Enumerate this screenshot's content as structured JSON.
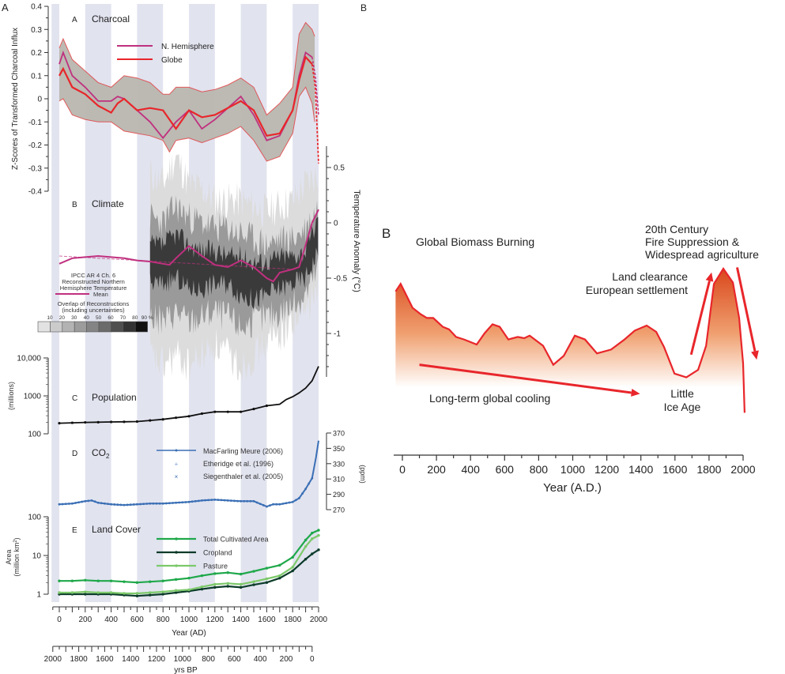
{
  "figure_labels": {
    "left": "A",
    "right_top": "B"
  },
  "colors": {
    "band": "#e1e3ef",
    "magenta": "#c0307f",
    "red": "#e8262b",
    "envelope": "#b8b6ae",
    "blue": "#3a6fb5",
    "total": "#1fa84a",
    "cropland": "#0c3b2a",
    "pasture": "#7cc96a",
    "fire_top": "#d9471c"
  },
  "shared_axes": {
    "year_label": "Year (AD)",
    "year_ticks": [
      0,
      200,
      400,
      600,
      800,
      1000,
      1200,
      1400,
      1600,
      1800,
      2000
    ],
    "bp_label": "yrs BP",
    "bp_ticks": [
      2000,
      1800,
      1600,
      1400,
      1200,
      1000,
      800,
      600,
      400,
      200,
      0
    ],
    "shaded_intervals_ad": [
      [
        -60,
        0
      ],
      [
        200,
        400
      ],
      [
        600,
        800
      ],
      [
        1000,
        1200
      ],
      [
        1400,
        1600
      ],
      [
        1800,
        2000
      ]
    ]
  },
  "chart_data": [
    {
      "type": "line",
      "panel": "A",
      "title": "Charcoal",
      "ylabel": "Z-Scores of Transformed Charcoal Influx",
      "ylim": [
        -0.4,
        0.4
      ],
      "yticks": [
        "0.4",
        "0.3",
        "0.2",
        "0.1",
        "0",
        "-0.1",
        "-0.2",
        "-0.3",
        "-0.4"
      ],
      "x": [
        0,
        30,
        100,
        200,
        300,
        400,
        450,
        500,
        600,
        700,
        800,
        900,
        1000,
        1100,
        1200,
        1300,
        1400,
        1500,
        1600,
        1700,
        1800,
        1850,
        1900,
        1950
      ],
      "series": [
        {
          "name": "N. Hemisphere",
          "values": [
            0.15,
            0.2,
            0.1,
            0.05,
            -0.01,
            -0.01,
            0.01,
            0.0,
            -0.05,
            -0.1,
            -0.17,
            -0.1,
            -0.05,
            -0.13,
            -0.09,
            -0.04,
            0.01,
            -0.07,
            -0.18,
            -0.16,
            -0.05,
            0.1,
            0.2,
            0.18
          ]
        },
        {
          "name": "Globe",
          "values": [
            0.1,
            0.13,
            0.05,
            0.02,
            -0.03,
            -0.06,
            -0.02,
            0.0,
            -0.05,
            -0.04,
            -0.05,
            -0.13,
            -0.05,
            -0.08,
            -0.07,
            -0.04,
            -0.01,
            -0.05,
            -0.16,
            -0.15,
            -0.05,
            0.08,
            0.18,
            0.15
          ]
        }
      ],
      "dashed_extension": {
        "x": [
          1950,
          1975,
          2000
        ],
        "nh": [
          0.18,
          0.1,
          -0.07
        ],
        "globe": [
          0.15,
          0.05,
          -0.28
        ]
      },
      "uncertainty_band": {
        "x": [
          0,
          30,
          100,
          200,
          300,
          400,
          500,
          600,
          700,
          800,
          850,
          900,
          1000,
          1100,
          1200,
          1300,
          1400,
          1500,
          1600,
          1700,
          1800,
          1850,
          1900,
          1950,
          1970
        ],
        "upper": [
          0.22,
          0.26,
          0.17,
          0.12,
          0.07,
          0.05,
          0.1,
          0.09,
          0.07,
          0.02,
          0.02,
          0.05,
          0.05,
          0.03,
          0.04,
          0.06,
          0.09,
          0.05,
          -0.07,
          -0.02,
          0.05,
          0.28,
          0.33,
          0.3,
          0.27
        ],
        "lower": [
          -0.01,
          0.0,
          -0.07,
          -0.09,
          -0.1,
          -0.1,
          -0.14,
          -0.15,
          -0.16,
          -0.18,
          -0.23,
          -0.18,
          -0.17,
          -0.19,
          -0.17,
          -0.15,
          -0.12,
          -0.18,
          -0.27,
          -0.25,
          -0.15,
          0.01,
          0.05,
          -0.02,
          -0.1
        ]
      },
      "legend": [
        "N. Hemisphere",
        "Globe"
      ]
    },
    {
      "type": "line",
      "panel": "B",
      "title": "Climate",
      "ylabel": "Temperature Anomaly (°C)",
      "ylim": [
        -1.4,
        0.7
      ],
      "yticks": [
        "0.5",
        "0",
        "-0.5",
        "-1"
      ],
      "mean": {
        "x": [
          0,
          100,
          200,
          300,
          400,
          500,
          600,
          700,
          800,
          850,
          900,
          1000,
          1100,
          1200,
          1300,
          1400,
          1500,
          1600,
          1650,
          1700,
          1800,
          1850,
          1900,
          1950,
          2000
        ],
        "values": [
          -0.37,
          -0.32,
          -0.31,
          -0.3,
          -0.31,
          -0.32,
          -0.34,
          -0.35,
          -0.37,
          -0.38,
          -0.32,
          -0.21,
          -0.3,
          -0.38,
          -0.4,
          -0.34,
          -0.4,
          -0.5,
          -0.53,
          -0.45,
          -0.42,
          -0.4,
          -0.2,
          0.0,
          0.12
        ]
      },
      "overlap_envelopes": {
        "x": [
          700,
          800,
          900,
          1000,
          1100,
          1200,
          1300,
          1400,
          1500,
          1600,
          1700,
          1800,
          1900,
          2000
        ],
        "outer_upper": [
          0.45,
          0.35,
          0.6,
          0.35,
          0.3,
          0.2,
          0.2,
          0.2,
          0.15,
          0.1,
          0.15,
          0.2,
          0.35,
          0.45
        ],
        "outer_lower": [
          -1.2,
          -1.3,
          -1.2,
          -1.3,
          -1.2,
          -1.1,
          -1.2,
          -1.3,
          -1.2,
          -1.1,
          -1.0,
          -0.9,
          -0.8,
          -0.6
        ],
        "mid_upper": [
          0.05,
          0.0,
          0.15,
          0.05,
          0.0,
          -0.05,
          -0.05,
          -0.1,
          -0.15,
          -0.2,
          -0.15,
          -0.15,
          -0.05,
          0.15
        ],
        "mid_lower": [
          -0.85,
          -0.9,
          -0.8,
          -0.9,
          -0.85,
          -0.8,
          -0.85,
          -0.95,
          -0.9,
          -0.85,
          -0.8,
          -0.75,
          -0.65,
          -0.4
        ],
        "core_upper": [
          -0.2,
          -0.2,
          -0.1,
          -0.2,
          -0.25,
          -0.25,
          -0.3,
          -0.3,
          -0.35,
          -0.35,
          -0.3,
          -0.3,
          -0.25,
          0.05
        ],
        "core_lower": [
          -0.55,
          -0.55,
          -0.5,
          -0.6,
          -0.6,
          -0.55,
          -0.55,
          -0.65,
          -0.7,
          -0.65,
          -0.6,
          -0.55,
          -0.5,
          -0.25
        ]
      },
      "legend": {
        "lines": [
          "IPCC AR 4 Ch. 6",
          "Reconstructed Northern",
          "Hemisphere Temperature"
        ],
        "mean_label": "Mean",
        "overlap_title": "Overlap of Reconstructions",
        "overlap_sub": "(including uncertainties)",
        "percent_labels": [
          "10",
          "20",
          "30",
          "40",
          "50",
          "60",
          "70",
          "80",
          "90 %"
        ],
        "scale_colors": [
          "#e2e2e2",
          "#cbcbcb",
          "#b3b3b3",
          "#9c9c9c",
          "#848484",
          "#6b6b6b",
          "#4f4f4f",
          "#333333",
          "#111111"
        ]
      }
    },
    {
      "type": "line",
      "panel": "C",
      "title": "Population",
      "ylabel": "(millions)",
      "yscale": "log",
      "ylim": [
        100,
        10000
      ],
      "yticks": [
        "10,000",
        "1000",
        "100"
      ],
      "x": [
        0,
        100,
        200,
        300,
        400,
        500,
        600,
        700,
        800,
        900,
        1000,
        1100,
        1200,
        1300,
        1400,
        1500,
        1600,
        1700,
        1750,
        1800,
        1850,
        1900,
        1950,
        2000
      ],
      "values": [
        190,
        195,
        200,
        202,
        205,
        207,
        210,
        225,
        240,
        265,
        290,
        340,
        380,
        380,
        380,
        450,
        550,
        600,
        800,
        950,
        1200,
        1600,
        2500,
        6000
      ]
    },
    {
      "type": "line",
      "panel": "D",
      "title": "CO",
      "title_sub": "2",
      "ylabel": "(ppm)",
      "ylim": [
        270,
        370
      ],
      "yticks": [
        "370",
        "350",
        "330",
        "310",
        "290",
        "270"
      ],
      "x": [
        0,
        100,
        200,
        250,
        300,
        400,
        500,
        600,
        700,
        800,
        900,
        1000,
        1100,
        1200,
        1300,
        1400,
        1500,
        1600,
        1650,
        1700,
        1800,
        1850,
        1900,
        1950,
        1980,
        2000
      ],
      "values": [
        277,
        278,
        281,
        282,
        279,
        277,
        276,
        277,
        278,
        278,
        279,
        280,
        282,
        283,
        282,
        281,
        281,
        274,
        277,
        277,
        280,
        285,
        297,
        311,
        338,
        360
      ],
      "legend": [
        "MacFarling Meure (2006)",
        "Etheridge et al. (1996)",
        "Siegenthaler et al. (2005)"
      ]
    },
    {
      "type": "line",
      "panel": "E",
      "title": "Land Cover",
      "ylabel_1": "Area",
      "ylabel_2": "(million km",
      "ylabel_sup": "2",
      "ylabel_end": ")",
      "yscale": "log",
      "ylim": [
        1,
        100
      ],
      "yticks": [
        "100",
        "10",
        "1"
      ],
      "x": [
        0,
        100,
        200,
        300,
        400,
        500,
        600,
        700,
        800,
        900,
        1000,
        1100,
        1200,
        1300,
        1400,
        1500,
        1600,
        1700,
        1800,
        1900,
        1950,
        2000
      ],
      "series": [
        {
          "name": "Total Cultivated Area",
          "values": [
            2.2,
            2.2,
            2.3,
            2.2,
            2.2,
            2.1,
            2.0,
            2.1,
            2.2,
            2.4,
            2.6,
            3.0,
            3.4,
            3.6,
            3.3,
            3.9,
            4.7,
            5.6,
            9,
            25,
            38,
            45
          ]
        },
        {
          "name": "Cropland",
          "values": [
            1.0,
            1.0,
            1.0,
            1.0,
            1.0,
            0.95,
            0.9,
            0.95,
            1.0,
            1.1,
            1.2,
            1.35,
            1.5,
            1.6,
            1.5,
            1.75,
            2.0,
            2.6,
            4,
            8,
            11,
            14
          ]
        },
        {
          "name": "Pasture",
          "values": [
            1.1,
            1.1,
            1.15,
            1.1,
            1.1,
            1.05,
            1.05,
            1.1,
            1.15,
            1.25,
            1.3,
            1.55,
            1.8,
            1.9,
            1.8,
            2.1,
            2.5,
            3.0,
            5,
            17,
            27,
            33
          ]
        }
      ]
    },
    {
      "type": "area",
      "panel": "B",
      "label": "B",
      "title": "Global Biomass Burning",
      "xlabel": "Year (A.D.)",
      "xticks": [
        0,
        200,
        400,
        600,
        800,
        1000,
        1200,
        1400,
        1600,
        1800,
        2000
      ],
      "y_units": "relative (no axis shown)",
      "x": [
        -40,
        -10,
        60,
        107,
        144,
        181,
        237,
        274,
        315,
        362,
        436,
        483,
        529,
        571,
        622,
        677,
        715,
        747,
        826,
        886,
        947,
        1012,
        1072,
        1142,
        1225,
        1304,
        1364,
        1434,
        1490,
        1536,
        1597,
        1667,
        1736,
        1783,
        1829,
        1884,
        1940,
        1977,
        2000
      ],
      "values": [
        82,
        88,
        69,
        64,
        61,
        61,
        54,
        52,
        46,
        44,
        40,
        49,
        56,
        54,
        44,
        46,
        45,
        47,
        39,
        24,
        31,
        47,
        44,
        33,
        36,
        44,
        51,
        55,
        50,
        38,
        17,
        14,
        20,
        39,
        88,
        100,
        89,
        61,
        25
      ],
      "tail": {
        "x": [
          2000,
          2009
        ],
        "values": [
          25,
          -14
        ]
      },
      "annotations": [
        {
          "text": "Long-term global cooling"
        },
        {
          "text": "Little"
        },
        {
          "text": "Ice Age"
        },
        {
          "text": "Land clearance"
        },
        {
          "text": "European settlement"
        },
        {
          "text": "20th Century"
        },
        {
          "text": "Fire Suppression &"
        },
        {
          "text": "Widespread agriculture"
        }
      ],
      "arrows": [
        {
          "from": [
            100,
            24
          ],
          "to": [
            1395,
            1
          ]
        },
        {
          "from": [
            1695,
            32
          ],
          "to": [
            1815,
            97
          ]
        },
        {
          "from": [
            1965,
            101
          ],
          "to": [
            2080,
            28
          ]
        }
      ]
    }
  ]
}
